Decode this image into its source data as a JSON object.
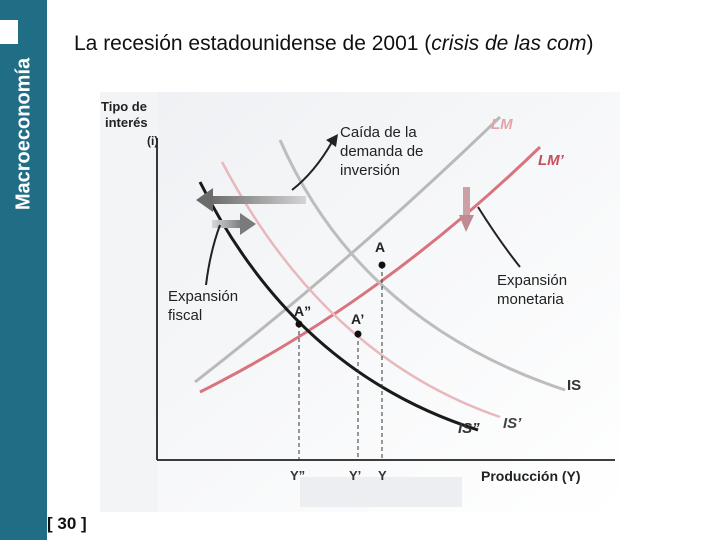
{
  "sidebar": {
    "title": "Macroeconomía"
  },
  "slide": {
    "title_prefix": "La recesión estadounidense de 2001 (",
    "title_italic": "crisis de las com",
    "title_suffix": ")",
    "page_number": "[ 30 ]"
  },
  "diagram": {
    "y_axis_label_line1": "Tipo de",
    "y_axis_label_line2": "interés",
    "y_axis_label_line3": "(i)",
    "x_axis_label": "Producción (Y)",
    "curves": {
      "lm": "LM",
      "lm_prime": "LM’",
      "is": "IS",
      "is_prime": "IS’",
      "is_double_prime": "IS”"
    },
    "points": {
      "a": "A",
      "a_prime": "A’",
      "a_double_prime": "A”"
    },
    "x_ticks": {
      "y_double_prime": "Y”",
      "y_prime": "Y’",
      "y": "Y"
    },
    "annotations": {
      "investment_drop_line1": "Caída de la",
      "investment_drop_line2": "demanda de",
      "investment_drop_line3": "inversión",
      "fiscal_line1": "Expansión",
      "fiscal_line2": "fiscal",
      "monetary_line1": "Expansión",
      "monetary_line2": "monetaria"
    },
    "colors": {
      "lm": "#b9b9b9",
      "lm_prime": "#d9747f",
      "is": "#1a1a1a",
      "is_prime": "#e8b8bd",
      "is_double_prime": "#c05a66",
      "label_lm": "#e5a2aa",
      "label_lm_prime": "#c4505c",
      "sidebar": "#1f6e86"
    }
  }
}
